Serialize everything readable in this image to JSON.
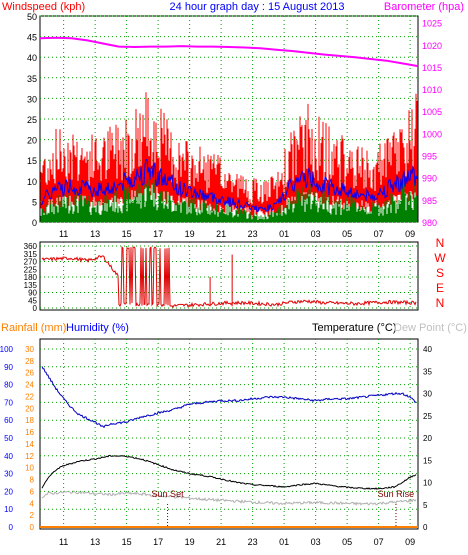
{
  "header": {
    "left_title": "Windspeed (kph)",
    "center_title": "24 hour graph day : 15 August 2013",
    "right_title": "Barometer (hpa)"
  },
  "colors": {
    "wind_gust": "#ff0000",
    "wind_avg": "#0000ff",
    "wind_low": "#008000",
    "barometer": "#ff00ff",
    "direction": "#e00000",
    "humidity": "#0000c0",
    "temperature": "#000000",
    "dewpoint": "#b0b0b0",
    "rain": "#ff8000",
    "axis": "#000000",
    "grid": "#00a000",
    "left_label": "#ff0000",
    "right_label": "#ff00ff",
    "left_axis_rain": "#ff8000",
    "humidity_label": "#0000ff",
    "dewpoint_label": "#c0c0c0"
  },
  "chart_data": [
    {
      "type": "line",
      "title": "24 hour graph day : 15 August 2013",
      "ylabel_left": "Windspeed (kph)",
      "ylabel_right": "Barometer (hpa)",
      "x_ticks": [
        "11",
        "13",
        "15",
        "17",
        "19",
        "21",
        "23",
        "01",
        "03",
        "05",
        "07",
        "09"
      ],
      "x_range_hours": [
        9.5,
        33.5
      ],
      "y_left_ticks": [
        0,
        5,
        10,
        15,
        20,
        25,
        30,
        35,
        40,
        45,
        50
      ],
      "y_left_range": [
        0,
        50
      ],
      "y_right_ticks": [
        980,
        985,
        990,
        995,
        1000,
        1005,
        1010,
        1015,
        1020,
        1025
      ],
      "y_right_range": [
        980,
        1026.5
      ],
      "grid": true,
      "series": [
        {
          "name": "Barometer (hpa)",
          "axis": "right",
          "x": [
            9.5,
            10.5,
            11.5,
            12.5,
            13.5,
            14.5,
            15.5,
            16.5,
            17.5,
            18.5,
            19.5,
            20.5,
            21.5,
            22.5,
            23.5,
            24.5,
            25.5,
            26.5,
            27.5,
            28.5,
            29.5,
            30.5,
            31.5,
            32.5,
            33.5
          ],
          "values": [
            1021.5,
            1021.6,
            1021.5,
            1021.0,
            1020.3,
            1019.6,
            1019.5,
            1019.6,
            1019.6,
            1019.7,
            1019.6,
            1019.6,
            1019.5,
            1019.4,
            1019.2,
            1018.9,
            1018.6,
            1018.2,
            1017.8,
            1017.5,
            1017.2,
            1016.8,
            1016.4,
            1015.8,
            1015.2
          ]
        },
        {
          "name": "Gust",
          "axis": "left",
          "x": [
            9.5,
            10.5,
            11.5,
            12.5,
            13.5,
            14.5,
            15.5,
            16.5,
            17.5,
            18.5,
            19.5,
            20.5,
            21.5,
            22.5,
            23.5,
            24.5,
            25.5,
            26.5,
            27.5,
            28.5,
            29.5,
            30.5,
            31.5,
            32.5,
            33.5
          ],
          "values": [
            12,
            16,
            17,
            15,
            15,
            18,
            20,
            23,
            18,
            14,
            13,
            12,
            10,
            8,
            7,
            8,
            16,
            20,
            17,
            15,
            13,
            12,
            14,
            18,
            22
          ]
        },
        {
          "name": "Average",
          "axis": "left",
          "x": [
            9.5,
            10.5,
            11.5,
            12.5,
            13.5,
            14.5,
            15.5,
            16.5,
            17.5,
            18.5,
            19.5,
            20.5,
            21.5,
            22.5,
            23.5,
            24.5,
            25.5,
            26.5,
            27.5,
            28.5,
            29.5,
            30.5,
            31.5,
            32.5,
            33.5
          ],
          "values": [
            5,
            8,
            9,
            8,
            8,
            9,
            11,
            13,
            10,
            8,
            7,
            6,
            5,
            4,
            3,
            4,
            9,
            11,
            9,
            8,
            7,
            6,
            8,
            10,
            12
          ]
        },
        {
          "name": "Lull",
          "axis": "left",
          "x": [
            9.5,
            10.5,
            11.5,
            12.5,
            13.5,
            14.5,
            15.5,
            16.5,
            17.5,
            18.5,
            19.5,
            20.5,
            21.5,
            22.5,
            23.5,
            24.5,
            25.5,
            26.5,
            27.5,
            28.5,
            29.5,
            30.5,
            31.5,
            32.5,
            33.5
          ],
          "values": [
            2,
            4,
            5,
            4,
            4,
            5,
            6,
            8,
            5,
            4,
            4,
            3,
            3,
            2,
            1,
            2,
            5,
            6,
            5,
            4,
            4,
            3,
            4,
            6,
            7
          ]
        }
      ]
    },
    {
      "type": "scatter",
      "title": "",
      "ylabel_right": "N W S E N",
      "x_ticks": [
        "11",
        "13",
        "15",
        "17",
        "19",
        "21",
        "23",
        "01",
        "03",
        "05",
        "07",
        "09"
      ],
      "x_range_hours": [
        9.5,
        33.5
      ],
      "y_ticks": [
        0,
        45,
        90,
        135,
        180,
        225,
        270,
        315,
        360
      ],
      "y_range": [
        0,
        360
      ],
      "series": [
        {
          "name": "Wind direction",
          "x": [
            9.5,
            10.5,
            11.5,
            12.5,
            13.5,
            14.5,
            15.0,
            15.5,
            16.0,
            16.5,
            17.0,
            17.5,
            18.5,
            19.5,
            20.5,
            21.5,
            22.5,
            23.5,
            24.5,
            25.5,
            26.5,
            27.5,
            28.5,
            29.5,
            30.5,
            31.5,
            32.5,
            33.5
          ],
          "values": [
            280,
            285,
            290,
            275,
            300,
            180,
            20,
            340,
            15,
            350,
            355,
            10,
            15,
            20,
            25,
            30,
            30,
            25,
            20,
            35,
            40,
            30,
            28,
            25,
            30,
            35,
            32,
            30
          ]
        }
      ]
    },
    {
      "type": "line",
      "title": "",
      "ylabel_left": "Rainfall (mm)",
      "ylabel_left2": "Humidity (%)",
      "ylabel_right": "Temperature (°C)",
      "ylabel_right2": "Dew Point (°C)",
      "x_ticks": [
        "11",
        "13",
        "15",
        "17",
        "19",
        "21",
        "23",
        "01",
        "03",
        "05",
        "07",
        "09"
      ],
      "x_range_hours": [
        9.5,
        33.5
      ],
      "y_rain_ticks": [
        0,
        2,
        4,
        6,
        8,
        10,
        12,
        14,
        16,
        18,
        20,
        22,
        24,
        26,
        28,
        30
      ],
      "y_humidity_ticks": [
        0,
        10,
        20,
        30,
        40,
        50,
        60,
        70,
        80,
        90,
        100
      ],
      "y_temp_ticks": [
        0,
        5,
        10,
        15,
        20,
        25,
        30,
        35,
        40
      ],
      "y_temp_range": [
        0,
        40
      ],
      "annotations": [
        {
          "text": "Sun Set",
          "x": 17.6
        },
        {
          "text": "Sun Rise",
          "x": 32.1
        }
      ],
      "series": [
        {
          "name": "Humidity (%)",
          "axis": "humidity",
          "x": [
            9.5,
            10.0,
            10.5,
            11.0,
            11.5,
            12.0,
            13.0,
            13.5,
            14.0,
            15.0,
            16.0,
            17.0,
            18.0,
            19.0,
            20.0,
            21.0,
            22.0,
            23.0,
            24.0,
            25.0,
            26.0,
            27.0,
            28.0,
            29.0,
            30.0,
            31.0,
            32.0,
            32.5,
            33.0,
            33.5
          ],
          "values": [
            92,
            85,
            78,
            72,
            67,
            63,
            59,
            56,
            58,
            59,
            62,
            64,
            66,
            69,
            70,
            71,
            71,
            72,
            73,
            73,
            72,
            71,
            72,
            72,
            73,
            74,
            75,
            75,
            73,
            69
          ]
        },
        {
          "name": "Temperature (°C)",
          "axis": "temperature",
          "x": [
            9.5,
            10.0,
            10.5,
            11.0,
            12.0,
            13.0,
            14.0,
            15.0,
            16.0,
            17.0,
            18.0,
            19.0,
            20.0,
            21.0,
            22.0,
            23.0,
            24.0,
            25.0,
            26.0,
            27.0,
            28.0,
            29.0,
            30.0,
            31.0,
            32.0,
            32.5,
            33.0,
            33.5
          ],
          "values": [
            8.0,
            11.0,
            12.8,
            13.8,
            14.8,
            15.3,
            16.0,
            15.9,
            15.2,
            14.0,
            12.8,
            12.0,
            11.5,
            10.8,
            10.0,
            9.5,
            9.3,
            9.0,
            9.5,
            9.8,
            9.3,
            8.9,
            8.7,
            8.6,
            9.0,
            10.0,
            11.2,
            12.0
          ]
        },
        {
          "name": "Dew Point (°C)",
          "axis": "temperature",
          "x": [
            9.5,
            10.0,
            11.0,
            12.0,
            13.0,
            14.0,
            15.0,
            16.0,
            17.0,
            18.0,
            19.0,
            20.0,
            21.0,
            22.0,
            23.0,
            24.0,
            25.0,
            26.0,
            27.0,
            28.0,
            29.0,
            30.0,
            31.0,
            32.0,
            33.0,
            33.5
          ],
          "values": [
            6.5,
            7.5,
            7.8,
            7.8,
            7.5,
            7.3,
            7.6,
            7.4,
            7.0,
            6.8,
            6.5,
            6.2,
            6.0,
            5.8,
            5.6,
            5.4,
            5.3,
            5.4,
            5.5,
            5.4,
            5.3,
            5.2,
            5.3,
            5.6,
            5.9,
            6.2
          ]
        },
        {
          "name": "Rainfall (mm)",
          "axis": "rain",
          "x": [
            9.5,
            33.5
          ],
          "values": [
            0,
            0
          ]
        }
      ]
    }
  ],
  "panel1": {
    "left_ticks": [
      "50",
      "45",
      "40",
      "35",
      "30",
      "25",
      "20",
      "15",
      "10",
      "5",
      "0"
    ],
    "right_ticks": [
      "1025",
      "1020",
      "1015",
      "1010",
      "1005",
      "1000",
      "995",
      "990",
      "985",
      "980"
    ]
  },
  "panel2": {
    "left_ticks": [
      "360",
      "315",
      "270",
      "225",
      "180",
      "135",
      "90",
      "45",
      "0"
    ],
    "dir_labels": [
      "N",
      "W",
      "S",
      "E",
      "N"
    ]
  },
  "panel3": {
    "rain_label": "Rainfall (mm)",
    "humidity_label": "Humidity (%)",
    "temp_label": "Temperature (°C)",
    "dew_label": "Dew Point (°C)",
    "rain_ticks": [
      "30",
      "28",
      "26",
      "24",
      "22",
      "20",
      "18",
      "16",
      "14",
      "12",
      "10",
      "8",
      "6",
      "4",
      "2",
      "0"
    ],
    "humidity_ticks": [
      "100",
      "90",
      "80",
      "70",
      "60",
      "50",
      "40",
      "30",
      "20",
      "10",
      "0"
    ],
    "temp_ticks": [
      "40",
      "35",
      "30",
      "25",
      "20",
      "15",
      "10",
      "5",
      "0"
    ],
    "sun_set": "Sun Set",
    "sun_rise": "Sun Rise"
  },
  "x_axis_labels": [
    "11",
    "13",
    "15",
    "17",
    "19",
    "21",
    "23",
    "01",
    "03",
    "05",
    "07",
    "09"
  ]
}
